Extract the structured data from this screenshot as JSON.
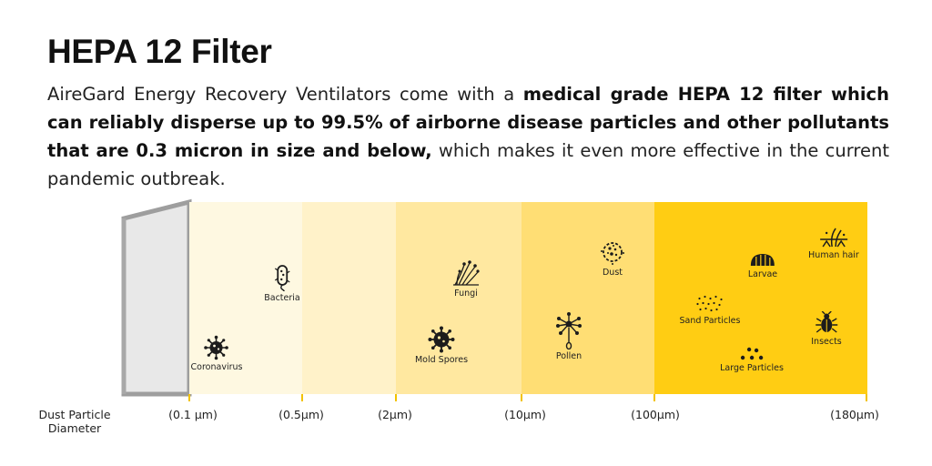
{
  "title": "HEPA 12 Filter",
  "intro": {
    "part1": "AireGard Energy Recovery Ventilators come with a ",
    "bold": "medical grade HEPA 12 filter which can reliably disperse up to 99.5% of airborne disease particles and other pollutants that are 0.3 micron in size and below,",
    "part2": " which makes it even more effective in the current pandemic outbreak."
  },
  "colors": {
    "zone1": "#fef8e1",
    "zone2": "#fff2c9",
    "zone3": "#ffe8a0",
    "zone4": "#ffde74",
    "zone5": "#ffcd13",
    "filter_frame": "#9e9e9e",
    "filter_face": "#e8e8e8",
    "icon": "#1c1c1c"
  },
  "axis_title": "Dust Particle Diameter",
  "scale_labels": [
    "(0.1 µm)",
    "(0.5µm)",
    "(2µm)",
    "(10µm)",
    "(100µm)",
    "(180µm)"
  ],
  "particles": [
    {
      "label": "Coronavirus",
      "icon": "coronavirus-icon"
    },
    {
      "label": "Bacteria",
      "icon": "bacteria-icon"
    },
    {
      "label": "Fungi",
      "icon": "fungi-icon"
    },
    {
      "label": "Mold Spores",
      "icon": "mold-spores-icon"
    },
    {
      "label": "Dust",
      "icon": "dust-icon"
    },
    {
      "label": "Pollen",
      "icon": "pollen-icon"
    },
    {
      "label": "Larvae",
      "icon": "larvae-icon"
    },
    {
      "label": "Human hair",
      "icon": "human-hair-icon"
    },
    {
      "label": "Sand Particles",
      "icon": "sand-particles-icon"
    },
    {
      "label": "Insects",
      "icon": "insects-icon"
    },
    {
      "label": "Large Particles",
      "icon": "large-particles-icon"
    }
  ]
}
